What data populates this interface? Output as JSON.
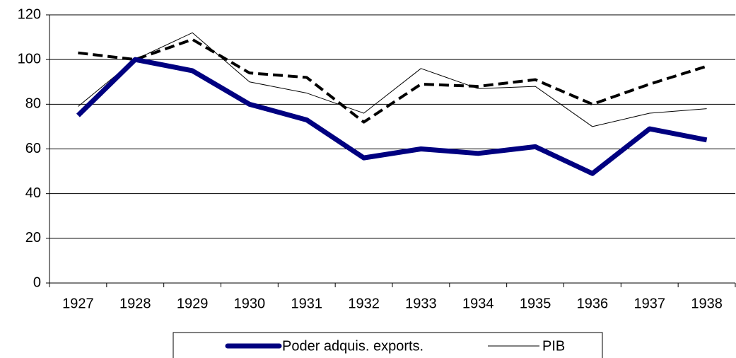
{
  "chart_data": {
    "type": "line",
    "categories": [
      "1927",
      "1928",
      "1929",
      "1930",
      "1931",
      "1932",
      "1933",
      "1934",
      "1935",
      "1936",
      "1937",
      "1938"
    ],
    "series": [
      {
        "name": "Poder adquis. exports.",
        "color": "#000080",
        "width": 7,
        "values": [
          75,
          100,
          95,
          80,
          73,
          56,
          60,
          58,
          61,
          49,
          69,
          64
        ]
      },
      {
        "name": "PIB",
        "color": "#000000",
        "width": 1,
        "values": [
          79,
          100,
          112,
          90,
          85,
          76,
          96,
          87,
          88,
          70,
          76,
          78
        ]
      },
      {
        "color": "#000000",
        "width": 4,
        "dashed": true,
        "values": [
          103,
          100,
          109,
          94,
          92,
          72,
          89,
          88,
          91,
          80,
          89,
          97
        ]
      }
    ],
    "ylim": [
      0,
      120
    ],
    "yticks": [
      0,
      20,
      40,
      60,
      80,
      100,
      120
    ],
    "grid": true
  }
}
